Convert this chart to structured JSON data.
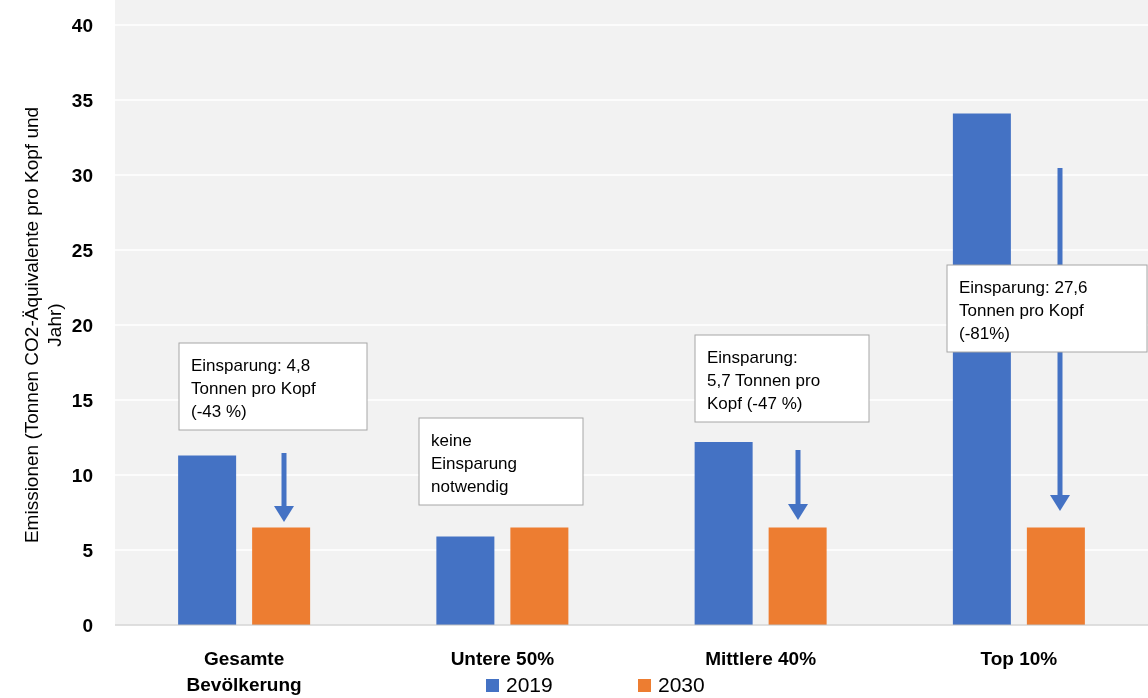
{
  "chart_data": {
    "type": "bar",
    "ylabel": "Emissionen (Tonnen CO2-Äquivalente pro Kopf und Jahr)",
    "categories": [
      "Gesamte Bevölkerung",
      "Untere 50%",
      "Mittlere 40%",
      "Top 10%"
    ],
    "series": [
      {
        "name": "2019",
        "color": "#4472c4",
        "values": [
          11.3,
          5.9,
          12.2,
          34.1
        ]
      },
      {
        "name": "2030",
        "color": "#ed7d31",
        "values": [
          6.5,
          6.5,
          6.5,
          6.5
        ]
      }
    ],
    "ylim": [
      0,
      40
    ],
    "yticks": [
      0,
      5,
      10,
      15,
      20,
      25,
      30,
      35,
      40
    ],
    "grid": "y",
    "legend": "bottom",
    "annotations": [
      "Einsparung: 4,8 Tonnen pro Kopf (-43 %)",
      "keine Einsparung notwendig",
      "Einsparung: 5,7 Tonnen pro Kopf (-47 %)",
      "Einsparung: 27,6 Tonnen pro Kopf (-81%)"
    ]
  }
}
